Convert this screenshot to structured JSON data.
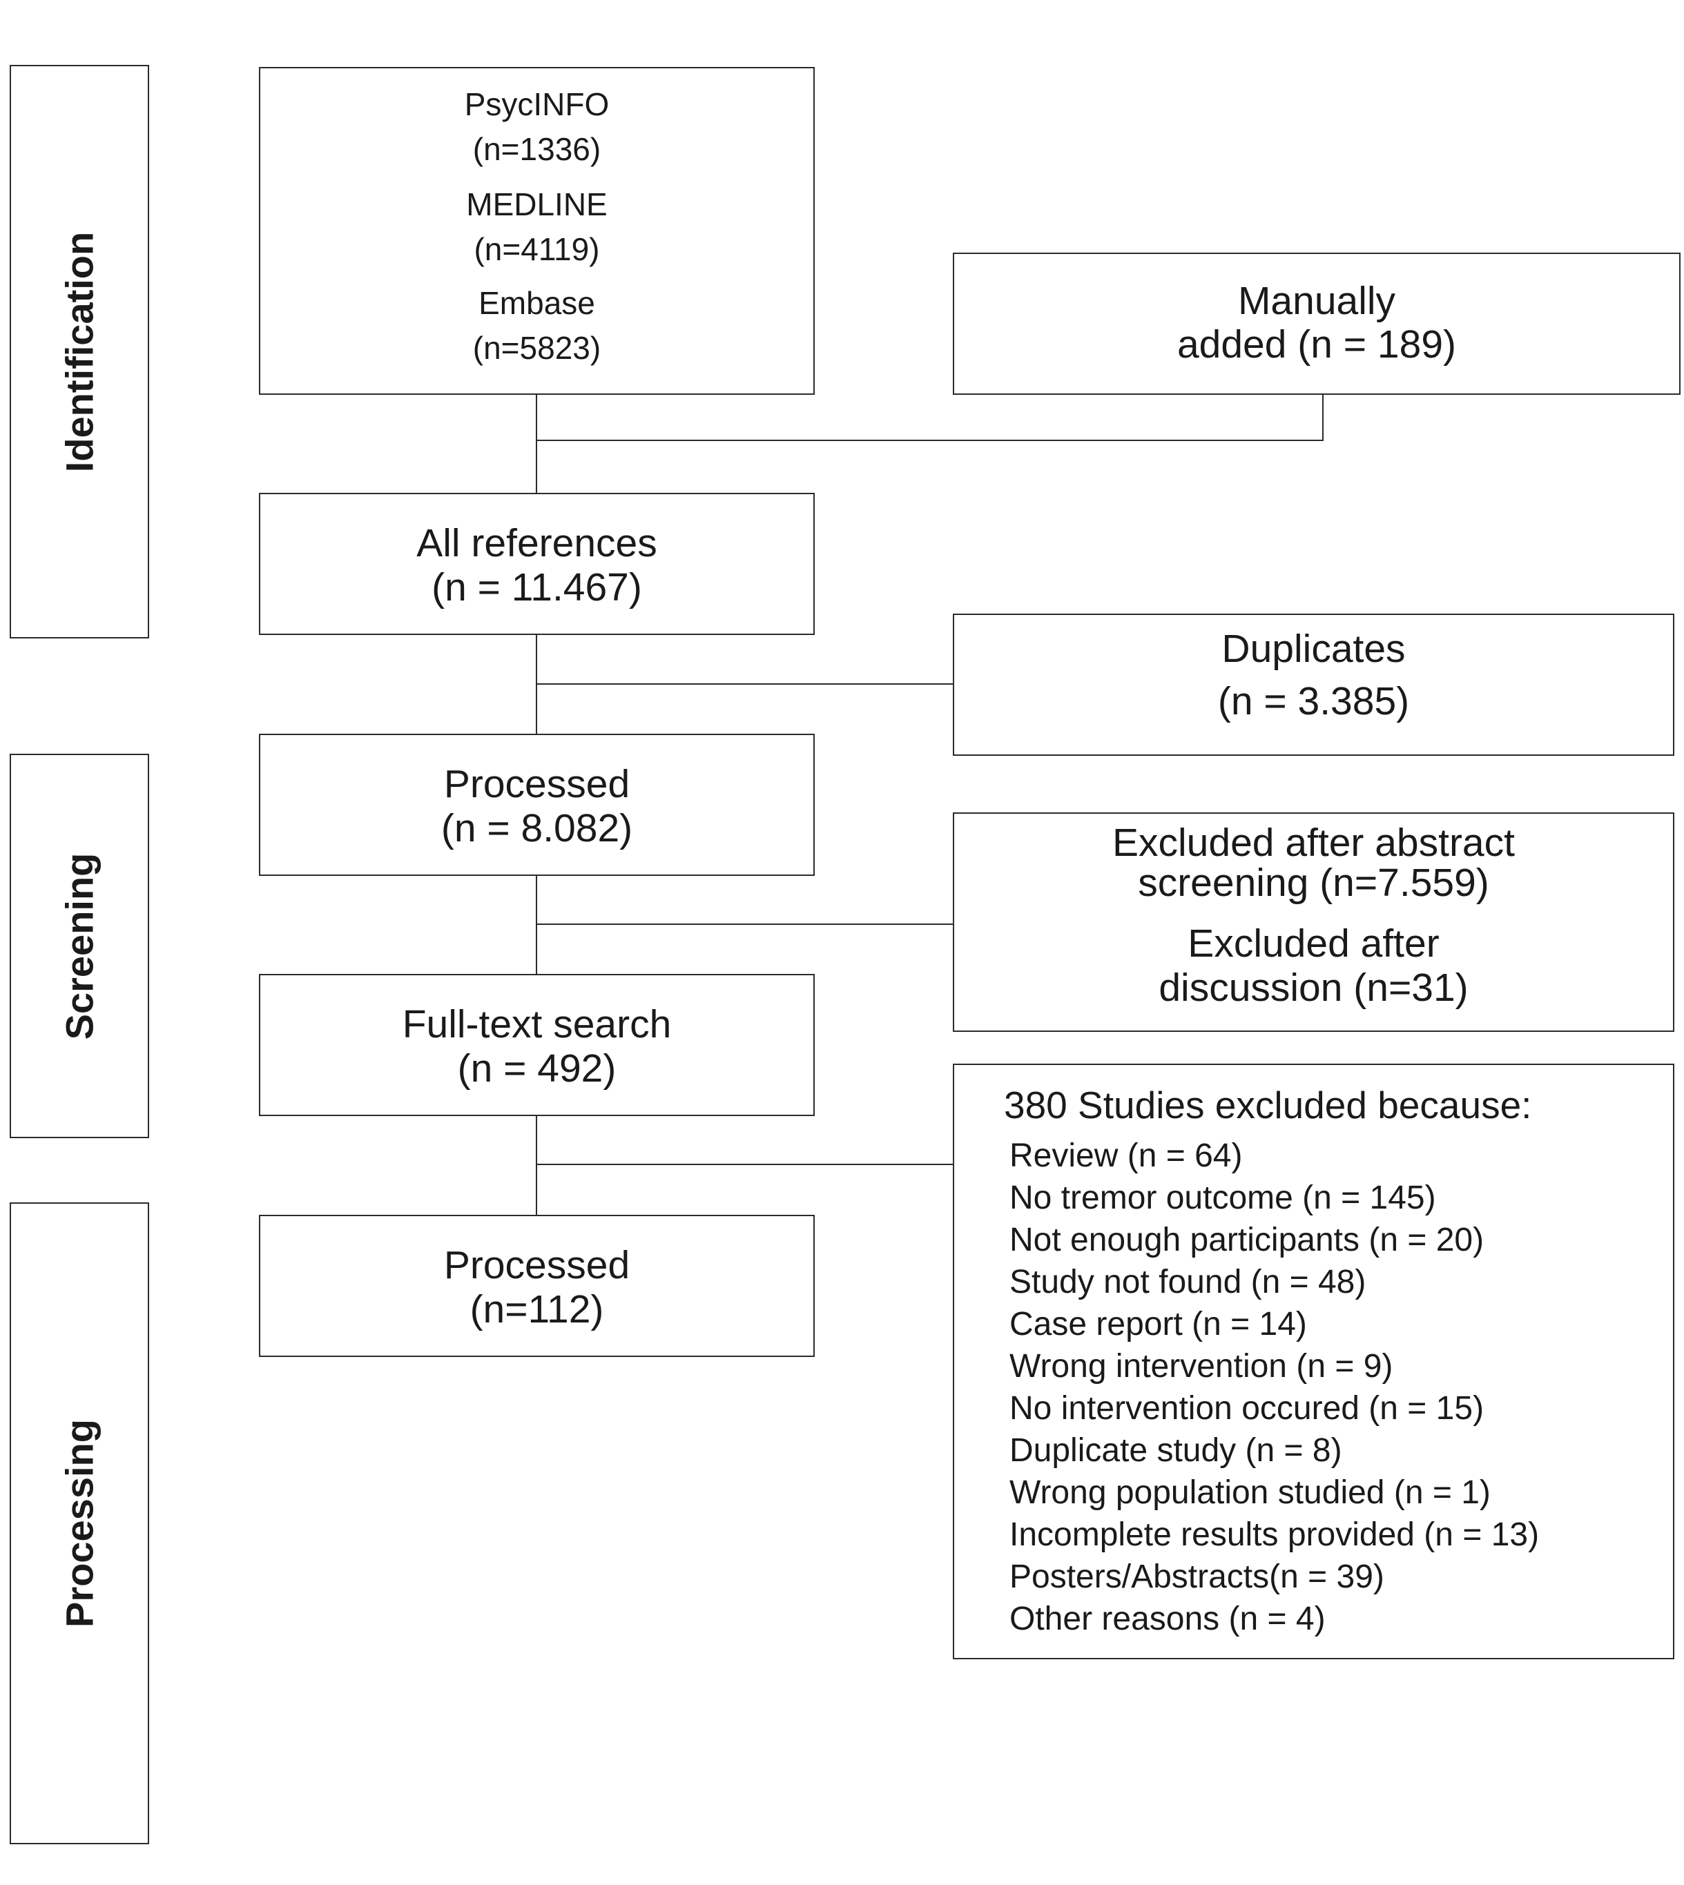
{
  "phases": {
    "identification": "Identification",
    "screening": "Screening",
    "processing": "Processing"
  },
  "sources": [
    {
      "name": "PsycINFO",
      "count": "(n=1336)"
    },
    {
      "name": "MEDLINE",
      "count": "(n=4119)"
    },
    {
      "name": "Embase",
      "count": "(n=5823)"
    }
  ],
  "manual": {
    "line1": "Manually",
    "line2": "added (n = 189)"
  },
  "all_refs": {
    "line1": "All references",
    "line2": "(n = 11.467)"
  },
  "duplicates": {
    "line1": "Duplicates",
    "line2": "(n = 3.385)"
  },
  "processed1": {
    "line1": "Processed",
    "line2": "(n = 8.082)"
  },
  "excluded_screen": {
    "line1": "Excluded after abstract",
    "line2": "screening (n=7.559)",
    "line3": "Excluded after",
    "line4": "discussion (n=31)"
  },
  "fulltext": {
    "line1": "Full-text search",
    "line2": "(n = 492)"
  },
  "processed2": {
    "line1": "Processed",
    "line2": "(n=112)"
  },
  "excluded_studies": {
    "heading": "380 Studies excluded because:",
    "reasons": [
      "Review (n = 64)",
      "No tremor outcome (n = 145)",
      "Not enough participants (n = 20)",
      "Study not found (n = 48)",
      "Case report (n = 14)",
      "Wrong intervention (n = 9)",
      "No intervention occured (n = 15)",
      "Duplicate study (n = 8)",
      "Wrong population studied (n = 1)",
      "Incomplete results provided (n = 13)",
      "Posters/Abstracts(n = 39)",
      "Other reasons (n = 4)"
    ]
  }
}
